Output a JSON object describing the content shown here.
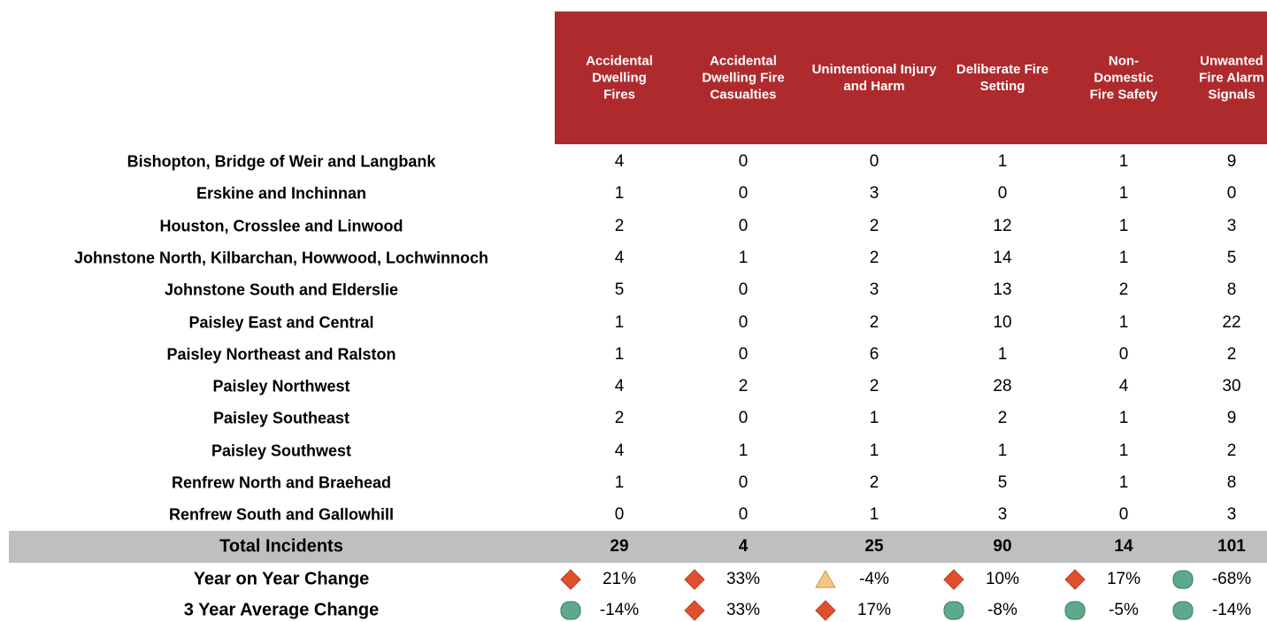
{
  "table": {
    "columns": [
      "Accidental Dwelling Fires",
      "Accidental Dwelling Fire Casualties",
      "Unintentional Injury and Harm",
      "Deliberate Fire Setting",
      "Non-Domestic Fire Safety",
      "Unwanted Fire Alarm Signals"
    ],
    "header_color": "#ae2a2d",
    "rows": [
      {
        "label": "Bishopton, Bridge of Weir and Langbank",
        "values": [
          4,
          0,
          0,
          1,
          1,
          9
        ]
      },
      {
        "label": "Erskine and Inchinnan",
        "values": [
          1,
          0,
          3,
          0,
          1,
          0
        ]
      },
      {
        "label": "Houston, Crosslee and Linwood",
        "values": [
          2,
          0,
          2,
          12,
          1,
          3
        ]
      },
      {
        "label": "Johnstone North, Kilbarchan, Howwood, Lochwinnoch",
        "values": [
          4,
          1,
          2,
          14,
          1,
          5
        ]
      },
      {
        "label": "Johnstone South and Elderslie",
        "values": [
          5,
          0,
          3,
          13,
          2,
          8
        ]
      },
      {
        "label": "Paisley East and Central",
        "values": [
          1,
          0,
          2,
          10,
          1,
          22
        ]
      },
      {
        "label": "Paisley Northeast and Ralston",
        "values": [
          1,
          0,
          6,
          1,
          0,
          2
        ]
      },
      {
        "label": "Paisley Northwest",
        "values": [
          4,
          2,
          2,
          28,
          4,
          30
        ]
      },
      {
        "label": "Paisley Southeast",
        "values": [
          2,
          0,
          1,
          2,
          1,
          9
        ]
      },
      {
        "label": "Paisley Southwest",
        "values": [
          4,
          1,
          1,
          1,
          1,
          2
        ]
      },
      {
        "label": "Renfrew North and Braehead",
        "values": [
          1,
          0,
          2,
          5,
          1,
          8
        ]
      },
      {
        "label": "Renfrew South and Gallowhill",
        "values": [
          0,
          0,
          1,
          3,
          0,
          3
        ]
      }
    ],
    "total": {
      "label": "Total Incidents",
      "values": [
        29,
        4,
        25,
        90,
        14,
        101
      ]
    },
    "changes": [
      {
        "label": "Year on Year Change",
        "values": [
          21,
          33,
          -4,
          10,
          17,
          -68
        ],
        "value_labels": [
          "21%",
          "33%",
          "-4%",
          "10%",
          "17%",
          "-68%"
        ],
        "icons": [
          "diamond",
          "diamond",
          "triangle",
          "diamond",
          "diamond",
          "circle"
        ]
      },
      {
        "label": "3 Year Average Change",
        "values": [
          -14,
          33,
          17,
          -8,
          -5,
          -14
        ],
        "value_labels": [
          "-14%",
          "33%",
          "17%",
          "-8%",
          "-5%",
          "-14%"
        ],
        "icons": [
          "circle",
          "diamond",
          "diamond",
          "circle",
          "circle",
          "circle"
        ]
      }
    ],
    "icon_colors": {
      "diamond": "#e0502e",
      "triangle": "#f3c77f",
      "circle": "#5fa98b"
    }
  }
}
